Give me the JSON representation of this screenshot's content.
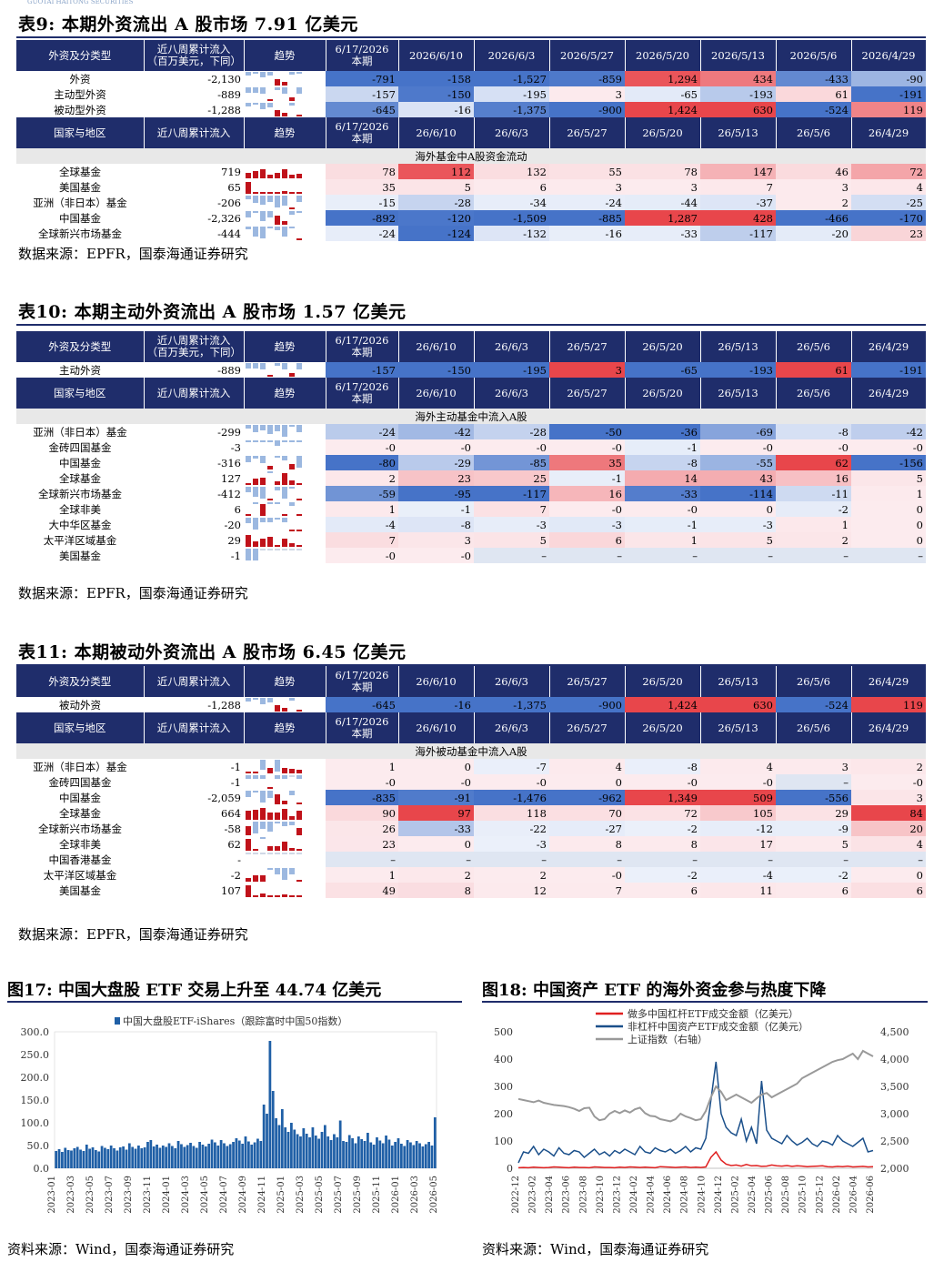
{
  "header": {
    "logo_text": "GUOTAI HAITONG SECURITIES"
  },
  "t9": {
    "title": "表9:  本期外资流出 A 股市场 7.91 亿美元",
    "source": "数据来源：EPFR，国泰海通证券研究",
    "h1": [
      "外资及分类型",
      "近八周累计流入\n（百万美元，下同）",
      "趋势",
      "6/17/2026\n本期",
      "2026/6/10",
      "2026/6/3",
      "2026/5/27",
      "2026/5/20",
      "2026/5/13",
      "2026/5/6",
      "2026/4/29"
    ],
    "rows1": [
      {
        "label": "外资",
        "cum": "-2,130",
        "vals": [
          "-791",
          "-158",
          "-1,527",
          "-859",
          "1,294",
          "434",
          "-433",
          "-90"
        ],
        "spark": [
          -0.3,
          -0.1,
          -0.4,
          -0.3,
          0.5,
          0.25,
          -0.2,
          -0.05
        ]
      },
      {
        "label": "主动型外资",
        "cum": "-889",
        "vals": [
          "-157",
          "-150",
          "-195",
          "3",
          "-65",
          "-193",
          "61",
          "-191"
        ],
        "spark": [
          -0.4,
          -0.4,
          -0.5,
          0.05,
          -0.2,
          -0.5,
          0.3,
          -0.5
        ]
      },
      {
        "label": "被动型外资",
        "cum": "-1,288",
        "vals": [
          "-645",
          "-16",
          "-1,375",
          "-900",
          "1,424",
          "630",
          "-524",
          "119"
        ],
        "spark": [
          -0.3,
          -0.05,
          -0.5,
          -0.35,
          0.5,
          0.3,
          -0.2,
          0.05
        ]
      }
    ],
    "h2": [
      "国家与地区",
      "近八周累计流入",
      "趋势",
      "6/17/2026\n本期",
      "26/6/10",
      "26/6/3",
      "26/5/27",
      "26/5/20",
      "26/5/13",
      "26/5/6",
      "26/4/29"
    ],
    "band": "海外基金中A股资金流动",
    "rows2": [
      {
        "label": "全球基金",
        "cum": "719",
        "vals": [
          "78",
          "112",
          "132",
          "55",
          "78",
          "147",
          "46",
          "72"
        ],
        "spark": [
          0.4,
          0.6,
          0.7,
          0.3,
          0.4,
          0.7,
          0.25,
          0.35
        ]
      },
      {
        "label": "美国基金",
        "cum": "65",
        "vals": [
          "35",
          "5",
          "6",
          "3",
          "3",
          "7",
          "3",
          "4"
        ],
        "spark": [
          0.9,
          0.15,
          0.15,
          0.1,
          0.1,
          0.2,
          0.1,
          0.12
        ]
      },
      {
        "label": "亚洲（非日本）基金",
        "cum": "-206",
        "vals": [
          "-15",
          "-28",
          "-34",
          "-24",
          "-44",
          "-37",
          "2",
          "-25"
        ],
        "spark": [
          -0.3,
          -0.6,
          -0.7,
          -0.5,
          -0.9,
          -0.8,
          0.05,
          -0.5
        ]
      },
      {
        "label": "中国基金",
        "cum": "-2,326",
        "vals": [
          "-892",
          "-120",
          "-1,509",
          "-885",
          "1,287",
          "428",
          "-466",
          "-170"
        ],
        "spark": [
          -0.5,
          -0.1,
          -0.8,
          -0.5,
          0.7,
          0.25,
          -0.3,
          -0.1
        ]
      },
      {
        "label": "全球新兴市场基金",
        "cum": "-444",
        "vals": [
          "-24",
          "-124",
          "-132",
          "-16",
          "-33",
          "-117",
          "-20",
          "23"
        ],
        "spark": [
          -0.2,
          -0.8,
          -0.9,
          -0.1,
          -0.25,
          -0.8,
          -0.15,
          0.15
        ]
      }
    ]
  },
  "t10": {
    "title": "表10:  本期主动外资流出 A 股市场 1.57 亿美元",
    "source": "数据来源：EPFR，国泰海通证券研究",
    "h1": [
      "外资及分类型",
      "近八周累计流入\n（百万美元，下同）",
      "趋势",
      "6/17/2026\n本期",
      "26/6/10",
      "26/6/3",
      "26/5/27",
      "26/5/20",
      "26/5/13",
      "26/5/6",
      "26/4/29"
    ],
    "rows1": [
      {
        "label": "主动外资",
        "cum": "-889",
        "vals": [
          "-157",
          "-150",
          "-195",
          "3",
          "-65",
          "-193",
          "61",
          "-191"
        ],
        "spark": [
          -0.4,
          -0.4,
          -0.5,
          0.05,
          -0.2,
          -0.5,
          0.3,
          -0.5
        ]
      }
    ],
    "h2": [
      "国家与地区",
      "近八周累计流入",
      "趋势",
      "6/17/2026\n本期",
      "26/6/10",
      "26/6/3",
      "26/5/27",
      "26/5/20",
      "26/5/13",
      "26/5/6",
      "26/4/29"
    ],
    "band": "海外主动基金中流入A股",
    "rows2": [
      {
        "label": "亚洲（非日本）基金",
        "cum": "-299",
        "vals": [
          "-24",
          "-42",
          "-28",
          "-50",
          "-36",
          "-69",
          "-8",
          "-42"
        ],
        "spark": [
          -0.3,
          -0.6,
          -0.4,
          -0.7,
          -0.5,
          -0.9,
          -0.1,
          -0.6
        ]
      },
      {
        "label": "金砖四国基金",
        "cum": "-3",
        "vals": [
          "-0",
          "-0",
          "-0",
          "-0",
          "-1",
          "-0",
          "-0",
          "-0"
        ],
        "spark": [
          -0.1,
          -0.1,
          -0.1,
          -0.1,
          -0.4,
          -0.1,
          -0.1,
          -0.1
        ]
      },
      {
        "label": "中国基金",
        "cum": "-316",
        "vals": [
          "-80",
          "-29",
          "-85",
          "35",
          "-8",
          "-55",
          "62",
          "-156"
        ],
        "spark": [
          -0.5,
          -0.2,
          -0.55,
          0.25,
          -0.05,
          -0.35,
          0.4,
          -0.9
        ]
      },
      {
        "label": "全球基金",
        "cum": "127",
        "vals": [
          "2",
          "23",
          "25",
          "-1",
          "14",
          "43",
          "16",
          "5"
        ],
        "spark": [
          0.05,
          0.5,
          0.55,
          -0.05,
          0.3,
          0.9,
          0.35,
          0.1
        ]
      },
      {
        "label": "全球新兴市场基金",
        "cum": "-412",
        "vals": [
          "-59",
          "-95",
          "-117",
          "16",
          "-33",
          "-114",
          "-11",
          "1"
        ],
        "spark": [
          -0.45,
          -0.8,
          -0.9,
          0.15,
          -0.3,
          -0.9,
          -0.1,
          0.02
        ]
      },
      {
        "label": "全球非美",
        "cum": "6",
        "vals": [
          "1",
          "-1",
          "7",
          "-0",
          "-0",
          "0",
          "-2",
          "0"
        ],
        "spark": [
          0.15,
          -0.15,
          0.9,
          -0.05,
          -0.05,
          0.02,
          -0.3,
          0.02
        ]
      },
      {
        "label": "大中华区基金",
        "cum": "-20",
        "vals": [
          "-4",
          "-8",
          "-3",
          "-3",
          "-1",
          "-3",
          "1",
          "0"
        ],
        "spark": [
          -0.45,
          -0.9,
          -0.35,
          -0.35,
          -0.12,
          -0.35,
          0.12,
          0.02
        ]
      },
      {
        "label": "太平洋区域基金",
        "cum": "29",
        "vals": [
          "7",
          "3",
          "5",
          "6",
          "1",
          "5",
          "2",
          "0"
        ],
        "spark": [
          0.9,
          0.4,
          0.65,
          0.8,
          0.15,
          0.65,
          0.3,
          0.02
        ]
      },
      {
        "label": "美国基金",
        "cum": "-1",
        "vals": [
          "-0",
          "-0",
          "–",
          "–",
          "–",
          "–",
          "–",
          "–"
        ],
        "spark": [
          -0.9,
          -0.9,
          0,
          0,
          0,
          0,
          0,
          0
        ]
      }
    ]
  },
  "t11": {
    "title": "表11:  本期被动外资流出 A 股市场 6.45 亿美元",
    "source": "数据来源：EPFR，国泰海通证券研究",
    "h1": [
      "外资及分类型",
      "近八周累计流入",
      "趋势",
      "6/17/2026\n本期",
      "26/6/10",
      "26/6/3",
      "26/5/27",
      "26/5/20",
      "26/5/13",
      "26/5/6",
      "26/4/29"
    ],
    "rows1": [
      {
        "label": "被动外资",
        "cum": "-1,288",
        "vals": [
          "-645",
          "-16",
          "-1,375",
          "-900",
          "1,424",
          "630",
          "-524",
          "119"
        ],
        "spark": [
          -0.3,
          -0.05,
          -0.5,
          -0.35,
          0.5,
          0.3,
          -0.2,
          0.05
        ]
      }
    ],
    "h2": [
      "国家与地区",
      "近八周累计流入",
      "趋势",
      "6/17/2026\n本期",
      "26/6/10",
      "26/6/3",
      "26/5/27",
      "26/5/20",
      "26/5/13",
      "26/5/6",
      "26/4/29"
    ],
    "band": "海外被动基金中流入A股",
    "rows2": [
      {
        "label": "亚洲（非日本）基金",
        "cum": "-1",
        "vals": [
          "1",
          "0",
          "-7",
          "4",
          "-8",
          "4",
          "3",
          "2"
        ],
        "spark": [
          0.1,
          0.02,
          -0.8,
          0.45,
          -0.9,
          0.45,
          0.35,
          0.25
        ]
      },
      {
        "label": "金砖四国基金",
        "cum": "-1",
        "vals": [
          "-0",
          "-0",
          "-0",
          "0",
          "-0",
          "-0",
          "–",
          "-0"
        ],
        "spark": [
          -0.3,
          -0.3,
          -0.3,
          0.1,
          -0.3,
          -0.3,
          0,
          -0.3
        ]
      },
      {
        "label": "中国基金",
        "cum": "-2,059",
        "vals": [
          "-835",
          "-91",
          "-1,476",
          "-962",
          "1,349",
          "509",
          "-556",
          "3"
        ],
        "spark": [
          -0.5,
          -0.1,
          -0.9,
          -0.6,
          0.8,
          0.3,
          -0.35,
          0.02
        ]
      },
      {
        "label": "全球基金",
        "cum": "664",
        "vals": [
          "90",
          "97",
          "118",
          "70",
          "72",
          "105",
          "29",
          "84"
        ],
        "spark": [
          0.7,
          0.8,
          0.95,
          0.6,
          0.6,
          0.85,
          0.25,
          0.7
        ]
      },
      {
        "label": "全球新兴市场基金",
        "cum": "-58",
        "vals": [
          "26",
          "-33",
          "-22",
          "-27",
          "-2",
          "-12",
          "-9",
          "20"
        ],
        "spark": [
          0.7,
          -0.9,
          -0.6,
          -0.75,
          -0.05,
          -0.35,
          -0.25,
          0.55
        ]
      },
      {
        "label": "全球非美",
        "cum": "62",
        "vals": [
          "23",
          "0",
          "-3",
          "8",
          "8",
          "17",
          "5",
          "4"
        ],
        "spark": [
          0.9,
          0.02,
          -0.12,
          0.35,
          0.35,
          0.7,
          0.2,
          0.15
        ]
      },
      {
        "label": "中国香港基金",
        "cum": "-",
        "vals": [
          "–",
          "–",
          "–",
          "–",
          "–",
          "–",
          "–",
          "–"
        ],
        "spark": [
          0,
          0,
          0,
          0,
          0,
          0,
          0,
          0
        ]
      },
      {
        "label": "太平洋区域基金",
        "cum": "-2",
        "vals": [
          "1",
          "2",
          "2",
          "-0",
          "-2",
          "-4",
          "-2",
          "0"
        ],
        "spark": [
          0.25,
          0.5,
          0.5,
          -0.05,
          -0.5,
          -0.9,
          -0.5,
          0.02
        ]
      },
      {
        "label": "美国基金",
        "cum": "107",
        "vals": [
          "49",
          "8",
          "12",
          "7",
          "6",
          "11",
          "6",
          "6"
        ],
        "spark": [
          0.95,
          0.15,
          0.25,
          0.15,
          0.12,
          0.22,
          0.12,
          0.12
        ]
      }
    ]
  },
  "fig17": {
    "title": "图17:  中国大盘股 ETF 交易上升至 44.74 亿美元",
    "source": "资料来源：Wind，国泰海通证券研究",
    "chart_data": {
      "type": "bar",
      "series": [
        {
          "name": "中国大盘股ETF-iShares（跟踪富时中国50指数）",
          "color": "#1f5fa6"
        }
      ],
      "ylim": [
        0,
        300
      ],
      "yticks": [
        "0.0",
        "50.0",
        "100.0",
        "150.0",
        "200.0",
        "250.0",
        "300.0"
      ],
      "xticks": [
        "2023-01",
        "2023-03",
        "2023-05",
        "2023-07",
        "2023-09",
        "2023-11",
        "2024-01",
        "2024-03",
        "2024-05",
        "2024-07",
        "2024-09",
        "2024-11",
        "2025-01",
        "2025-03",
        "2025-05",
        "2025-07",
        "2025-09",
        "2025-11",
        "2026-01",
        "2026-03",
        "2026-05"
      ],
      "values": [
        38,
        42,
        36,
        45,
        40,
        39,
        44,
        47,
        41,
        38,
        52,
        43,
        46,
        40,
        37,
        49,
        45,
        42,
        50,
        44,
        39,
        46,
        48,
        41,
        55,
        47,
        43,
        50,
        44,
        46,
        58,
        62,
        48,
        52,
        45,
        50,
        47,
        55,
        49,
        44,
        60,
        53,
        47,
        51,
        56,
        49,
        45,
        58,
        52,
        48,
        54,
        63,
        57,
        50,
        62,
        55,
        49,
        53,
        58,
        66,
        61,
        54,
        70,
        59,
        52,
        57,
        65,
        60,
        140,
        120,
        280,
        170,
        110,
        95,
        130,
        90,
        80,
        100,
        85,
        75,
        70,
        88,
        76,
        68,
        90,
        72,
        65,
        80,
        95,
        70,
        62,
        75,
        68,
        105,
        60,
        58,
        73,
        66,
        55,
        70,
        64,
        60,
        78,
        57,
        52,
        68,
        61,
        55,
        72,
        63,
        50,
        58,
        66,
        54,
        49,
        62,
        57,
        51,
        60,
        55,
        48,
        53,
        58,
        50,
        112
      ]
    }
  },
  "fig18": {
    "title": "图18:  中国资产 ETF 的海外资金参与热度下降",
    "source": "资料来源：Wind，国泰海通证券研究",
    "chart_data": {
      "type": "line",
      "series": [
        {
          "name": "做多中国杠杆ETF成交金额（亿美元）",
          "color": "#e02020",
          "axis": "left",
          "values": [
            2,
            3,
            2,
            4,
            3,
            2,
            3,
            5,
            4,
            3,
            2,
            4,
            3,
            3,
            2,
            5,
            4,
            3,
            3,
            2,
            4,
            3,
            5,
            4,
            3,
            4,
            3,
            2,
            6,
            5,
            4,
            3,
            4,
            5,
            3,
            4,
            3,
            5,
            40,
            60,
            30,
            15,
            10,
            12,
            8,
            14,
            9,
            10,
            7,
            8,
            12,
            9,
            8,
            10,
            7,
            9,
            8,
            6,
            7,
            8,
            9,
            6,
            5,
            7,
            6,
            8,
            5,
            6,
            7,
            5,
            6
          ]
        },
        {
          "name": "非杠杆中国资产ETF成交金额（亿美元）",
          "color": "#1a4f8a",
          "axis": "left",
          "values": [
            20,
            60,
            55,
            80,
            50,
            70,
            60,
            45,
            75,
            55,
            50,
            65,
            60,
            40,
            55,
            70,
            50,
            60,
            45,
            65,
            55,
            70,
            60,
            50,
            80,
            60,
            55,
            75,
            65,
            60,
            70,
            55,
            65,
            80,
            60,
            75,
            70,
            110,
            250,
            390,
            200,
            150,
            130,
            120,
            180,
            100,
            150,
            90,
            320,
            140,
            110,
            100,
            90,
            120,
            100,
            85,
            95,
            110,
            90,
            80,
            100,
            95,
            85,
            120,
            100,
            90,
            80,
            95,
            110,
            60,
            65
          ]
        },
        {
          "name": "上证指数（右轴）",
          "color": "#999999",
          "axis": "right",
          "values": [
            3270,
            3250,
            3230,
            3210,
            3240,
            3200,
            3180,
            3160,
            3150,
            3140,
            3120,
            3090,
            3050,
            3100,
            3110,
            2950,
            2880,
            2900,
            3000,
            3050,
            3010,
            3060,
            3020,
            3080,
            3110,
            3010,
            2960,
            2950,
            2900,
            2880,
            2860,
            2900,
            3000,
            2950,
            2920,
            2880,
            2900,
            3050,
            3300,
            3500,
            3400,
            3250,
            3300,
            3350,
            3300,
            3250,
            3200,
            3280,
            3350,
            3380,
            3300,
            3350,
            3400,
            3450,
            3500,
            3550,
            3650,
            3700,
            3750,
            3800,
            3850,
            3900,
            3950,
            3980,
            4000,
            4050,
            4100,
            4000,
            4150,
            4100,
            4050
          ]
        }
      ],
      "ylim_left": [
        0,
        500
      ],
      "ylim_right": [
        2000,
        4500
      ],
      "yticks_left": [
        "0",
        "100",
        "200",
        "300",
        "400",
        "500"
      ],
      "yticks_right": [
        "2,000",
        "2,500",
        "3,000",
        "3,500",
        "4,000",
        "4,500"
      ],
      "xticks": [
        "2022-12",
        "2023-02",
        "2023-04",
        "2023-06",
        "2023-08",
        "2023-10",
        "2023-12",
        "2024-02",
        "2024-04",
        "2024-06",
        "2024-08",
        "2024-10",
        "2024-12",
        "2025-02",
        "2025-04",
        "2025-06",
        "2025-08",
        "2025-10",
        "2025-12",
        "2026-02",
        "2026-04",
        "2026-06"
      ]
    }
  },
  "colors": {
    "header": "#1f2d6b",
    "neg": "#4a76c8",
    "pos": "#e8474b"
  }
}
